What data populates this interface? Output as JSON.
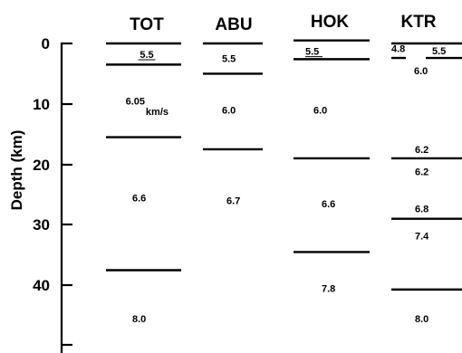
{
  "y_axis": {
    "label": "Depth (km)",
    "ticks": [
      "0",
      "10",
      "20",
      "30",
      "40"
    ]
  },
  "stations": [
    {
      "name": "TOT",
      "boundaries_km": [
        0,
        3.5,
        15.5,
        37.5
      ],
      "velocities": [
        {
          "text": "5.5",
          "depth_km": 1.8,
          "underline": true
        },
        {
          "text": "6.05",
          "depth_km": 9.5
        },
        {
          "text": "km/s",
          "depth_km": 11.2
        },
        {
          "text": "6.6",
          "depth_km": 25.5
        },
        {
          "text": "8.0",
          "depth_km": 45.5
        }
      ]
    },
    {
      "name": "ABU",
      "boundaries_km": [
        0,
        5,
        17.5
      ],
      "velocities": [
        {
          "text": "5.5",
          "depth_km": 2.5
        },
        {
          "text": "6.0",
          "depth_km": 11
        },
        {
          "text": "6.7",
          "depth_km": 26
        }
      ]
    },
    {
      "name": "HOK",
      "boundaries_km": [
        -0.5,
        2.6,
        19,
        34.5
      ],
      "velocities": [
        {
          "text": "5.5",
          "depth_km": 1.3,
          "underline": true
        },
        {
          "text": "6.0",
          "depth_km": 11
        },
        {
          "text": "6.6",
          "depth_km": 26.5
        },
        {
          "text": "7.8",
          "depth_km": 40.5
        }
      ]
    },
    {
      "name": "KTR",
      "boundaries_km": [
        0,
        2.4,
        19,
        29,
        40.7
      ],
      "velocities": [
        {
          "text": "4.8",
          "depth_km": 0.8
        },
        {
          "text": "5.5",
          "depth_km": 1.2
        },
        {
          "text": "6.0",
          "depth_km": 4.5
        },
        {
          "text": "6.2",
          "depth_km": 17.5
        },
        {
          "text": "6.2",
          "depth_km": 21.2
        },
        {
          "text": "6.8",
          "depth_km": 27.3
        },
        {
          "text": "7.4",
          "depth_km": 31.8
        },
        {
          "text": "8.0",
          "depth_km": 45.5
        }
      ]
    }
  ]
}
